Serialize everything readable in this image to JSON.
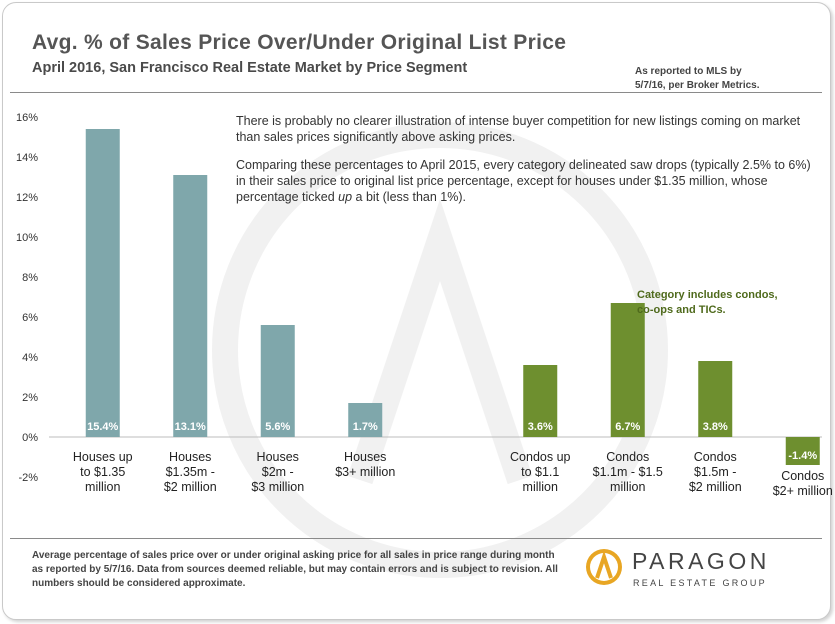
{
  "header": {
    "title": "Avg. % of Sales Price Over/Under Original List Price",
    "subtitle": "April 2016, San Francisco Real Estate Market by Price Segment",
    "source_note": "As reported to MLS by\n5/7/16, per Broker Metrics."
  },
  "annotation": {
    "paragraph1": "There is probably no clearer illustration of intense buyer competition for new listings coming on market than sales prices significantly above asking prices.",
    "paragraph2_before": "Comparing these percentages to April 2015, every category delineated saw drops (typically 2.5% to 6%) in their sales price to original list price percentage, except for houses under $1.35 million, whose percentage ticked ",
    "paragraph2_emph": "up",
    "paragraph2_after": " a bit (less than 1%)."
  },
  "callout": "Category includes condos,\nco-ops and TICs.",
  "footer": "Average percentage of sales price over or under original asking price for all sales in price range during month as reported by 5/7/16. Data from sources deemed reliable, but may contain errors and is subject to revision. All numbers should be considered approximate.",
  "logo": {
    "name": "PARAGON",
    "tagline": "REAL ESTATE GROUP"
  },
  "colors": {
    "houses": "#7fa7ab",
    "condos": "#6e8f2f",
    "callout": "#4f6a1c",
    "logo_gold": "#e8a623"
  },
  "chart_data": {
    "type": "bar",
    "title": "Avg. % of Sales Price Over/Under Original List Price",
    "ylim": [
      -2,
      16
    ],
    "yticks": [
      -2,
      0,
      2,
      4,
      6,
      8,
      10,
      12,
      14,
      16
    ],
    "ytick_labels": [
      "-2%",
      "0%",
      "2%",
      "4%",
      "6%",
      "8%",
      "10%",
      "12%",
      "14%",
      "16%"
    ],
    "categories": [
      "Houses up to $1.35 million",
      "Houses $1.35m - $2 million",
      "Houses $2m - $3 million",
      "Houses $3+ million",
      "",
      "Condos up to $1.1 million",
      "Condos $1.1m - $1.5 million",
      "Condos $1.5m - $2 million",
      "Condos $2+ million"
    ],
    "category_lines": [
      [
        "Houses up",
        "to $1.35",
        "million"
      ],
      [
        "Houses",
        "$1.35m -",
        "$2 million"
      ],
      [
        "Houses",
        "$2m -",
        "$3 million"
      ],
      [
        "Houses",
        "$3+ million"
      ],
      [],
      [
        "Condos up",
        "to $1.1",
        "million"
      ],
      [
        "Condos",
        "$1.1m - $1.5",
        "million"
      ],
      [
        "Condos",
        "$1.5m -",
        "$2 million"
      ],
      [
        "Condos",
        "$2+ million"
      ]
    ],
    "values": [
      15.4,
      13.1,
      5.6,
      1.7,
      null,
      3.6,
      6.7,
      3.8,
      -1.4
    ],
    "labels": [
      "15.4%",
      "13.1%",
      "5.6%",
      "1.7%",
      "",
      "3.6%",
      "6.7%",
      "3.8%",
      "-1.4%"
    ],
    "groups": [
      "houses",
      "houses",
      "houses",
      "houses",
      "",
      "condos",
      "condos",
      "condos",
      "condos"
    ],
    "grid": false
  }
}
